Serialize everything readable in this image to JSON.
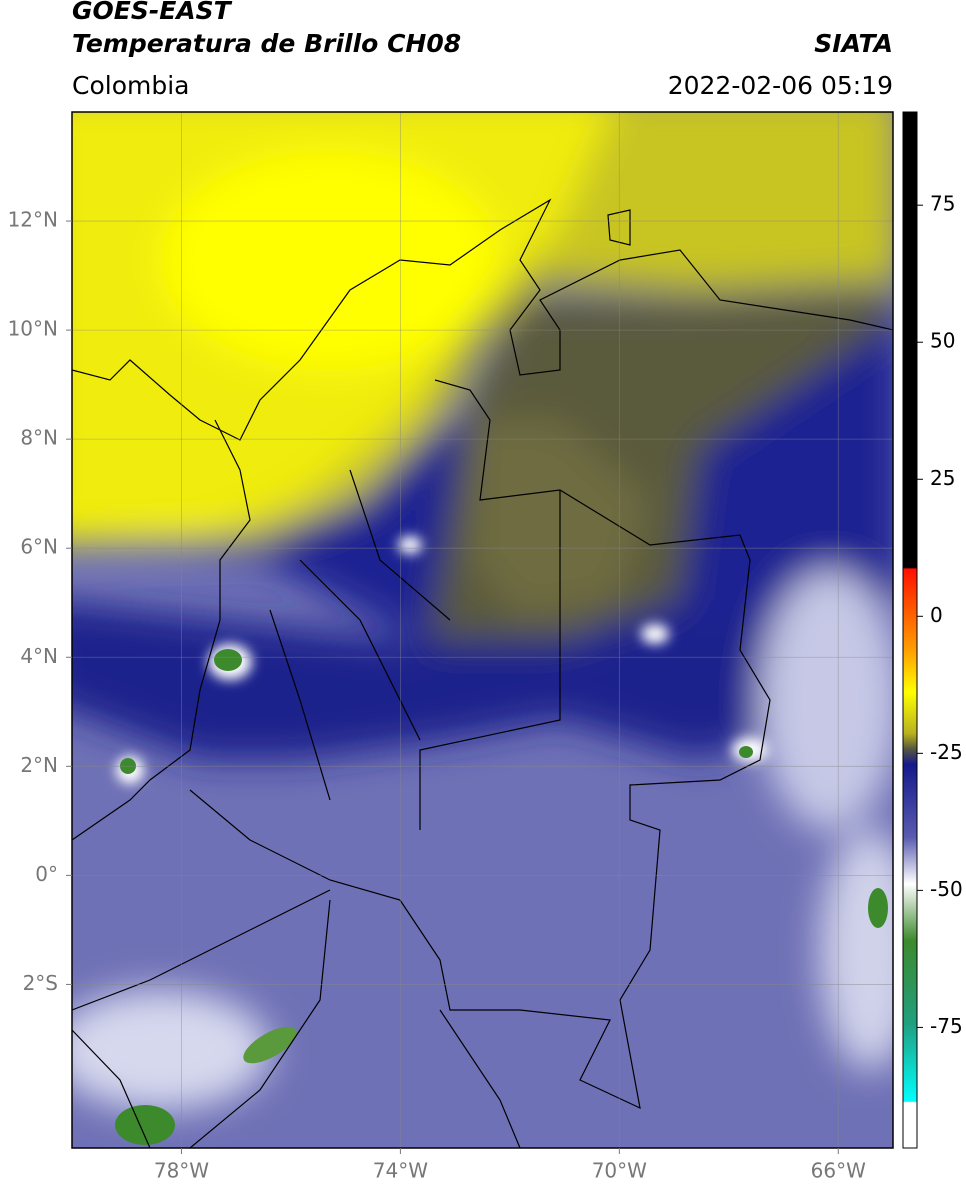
{
  "header": {
    "satellite": "GOES-EAST",
    "product": "Temperatura de Brillo CH08",
    "source": "SIATA",
    "region": "Colombia",
    "datetime": "2022-02-06 05:19"
  },
  "map": {
    "lonlim": [
      -80,
      -65
    ],
    "latlim": [
      -5,
      14
    ],
    "lonticks": [
      {
        "value": -78,
        "label": "78°W"
      },
      {
        "value": -74,
        "label": "74°W"
      },
      {
        "value": -70,
        "label": "70°W"
      },
      {
        "value": -66,
        "label": "66°W"
      }
    ],
    "latticks": [
      {
        "value": 12,
        "label": "12°N"
      },
      {
        "value": 10,
        "label": "10°N"
      },
      {
        "value": 8,
        "label": "8°N"
      },
      {
        "value": 6,
        "label": "6°N"
      },
      {
        "value": 4,
        "label": "4°N"
      },
      {
        "value": 2,
        "label": "2°N"
      },
      {
        "value": 0,
        "label": "0°"
      },
      {
        "value": -2,
        "label": "2°S"
      }
    ],
    "grid": true
  },
  "colorbar": {
    "lim": [
      -97,
      92
    ],
    "ticks": [
      75,
      50,
      25,
      0,
      -25,
      -50,
      -75
    ]
  }
}
